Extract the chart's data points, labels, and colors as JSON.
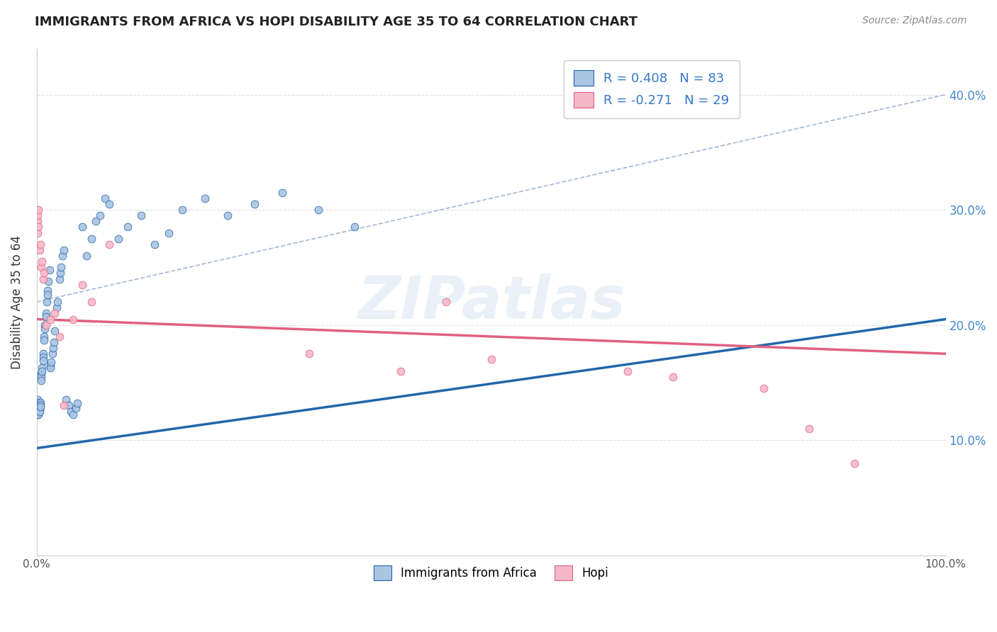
{
  "title": "IMMIGRANTS FROM AFRICA VS HOPI DISABILITY AGE 35 TO 64 CORRELATION CHART",
  "source": "Source: ZipAtlas.com",
  "ylabel": "Disability Age 35 to 64",
  "xlim": [
    0.0,
    1.0
  ],
  "ylim": [
    0.0,
    0.44
  ],
  "x_ticks": [
    0.0,
    0.1,
    0.2,
    0.3,
    0.4,
    0.5,
    0.6,
    0.7,
    0.8,
    0.9,
    1.0
  ],
  "x_tick_labels": [
    "0.0%",
    "",
    "",
    "",
    "",
    "",
    "",
    "",
    "",
    "",
    "100.0%"
  ],
  "y_ticks": [
    0.1,
    0.2,
    0.3,
    0.4
  ],
  "y_tick_labels": [
    "10.0%",
    "20.0%",
    "30.0%",
    "40.0%"
  ],
  "legend_labels": [
    "Immigrants from Africa",
    "Hopi"
  ],
  "R_africa": 0.408,
  "N_africa": 83,
  "R_hopi": -0.271,
  "N_hopi": 29,
  "africa_color": "#aac4e2",
  "africa_line_color": "#2266aa",
  "hopi_color": "#f5b8c8",
  "hopi_line_color": "#e06080",
  "watermark": "ZIPatlas",
  "africa_scatter_x": [
    0.001,
    0.001,
    0.001,
    0.001,
    0.001,
    0.001,
    0.001,
    0.001,
    0.001,
    0.001,
    0.002,
    0.002,
    0.002,
    0.002,
    0.002,
    0.002,
    0.002,
    0.003,
    0.003,
    0.003,
    0.003,
    0.003,
    0.004,
    0.004,
    0.004,
    0.005,
    0.005,
    0.005,
    0.006,
    0.006,
    0.007,
    0.007,
    0.007,
    0.008,
    0.008,
    0.009,
    0.009,
    0.01,
    0.01,
    0.011,
    0.012,
    0.012,
    0.013,
    0.014,
    0.015,
    0.015,
    0.016,
    0.017,
    0.018,
    0.019,
    0.02,
    0.022,
    0.023,
    0.025,
    0.026,
    0.027,
    0.028,
    0.03,
    0.032,
    0.035,
    0.038,
    0.04,
    0.043,
    0.045,
    0.05,
    0.055,
    0.06,
    0.065,
    0.07,
    0.075,
    0.08,
    0.09,
    0.1,
    0.115,
    0.13,
    0.145,
    0.16,
    0.185,
    0.21,
    0.24,
    0.27,
    0.31,
    0.35
  ],
  "africa_scatter_y": [
    0.135,
    0.133,
    0.131,
    0.13,
    0.128,
    0.127,
    0.125,
    0.124,
    0.123,
    0.122,
    0.13,
    0.128,
    0.127,
    0.125,
    0.124,
    0.123,
    0.122,
    0.132,
    0.13,
    0.128,
    0.126,
    0.125,
    0.133,
    0.131,
    0.129,
    0.158,
    0.155,
    0.152,
    0.163,
    0.16,
    0.175,
    0.172,
    0.169,
    0.19,
    0.187,
    0.2,
    0.197,
    0.21,
    0.207,
    0.22,
    0.23,
    0.226,
    0.238,
    0.248,
    0.165,
    0.163,
    0.168,
    0.175,
    0.18,
    0.185,
    0.195,
    0.215,
    0.22,
    0.24,
    0.245,
    0.25,
    0.26,
    0.265,
    0.135,
    0.13,
    0.125,
    0.122,
    0.128,
    0.132,
    0.285,
    0.26,
    0.275,
    0.29,
    0.295,
    0.31,
    0.305,
    0.275,
    0.285,
    0.295,
    0.27,
    0.28,
    0.3,
    0.31,
    0.295,
    0.305,
    0.315,
    0.3,
    0.285
  ],
  "hopi_scatter_x": [
    0.001,
    0.001,
    0.001,
    0.002,
    0.002,
    0.003,
    0.004,
    0.005,
    0.006,
    0.007,
    0.008,
    0.01,
    0.015,
    0.02,
    0.025,
    0.03,
    0.04,
    0.05,
    0.06,
    0.08,
    0.3,
    0.4,
    0.45,
    0.5,
    0.65,
    0.7,
    0.8,
    0.85,
    0.9
  ],
  "hopi_scatter_y": [
    0.29,
    0.295,
    0.28,
    0.3,
    0.285,
    0.265,
    0.27,
    0.25,
    0.255,
    0.24,
    0.245,
    0.2,
    0.205,
    0.21,
    0.19,
    0.13,
    0.205,
    0.235,
    0.22,
    0.27,
    0.175,
    0.16,
    0.22,
    0.17,
    0.16,
    0.155,
    0.145,
    0.11,
    0.08
  ],
  "africa_line_y_start": 0.093,
  "africa_line_y_end": 0.205,
  "hopi_line_y_start": 0.205,
  "hopi_line_y_end": 0.175,
  "dashed_line_color": "#a0b8d8",
  "dashed_line_y_start": 0.22,
  "dashed_line_y_end": 0.4,
  "background_color": "#ffffff",
  "grid_color": "#e0e0e0"
}
